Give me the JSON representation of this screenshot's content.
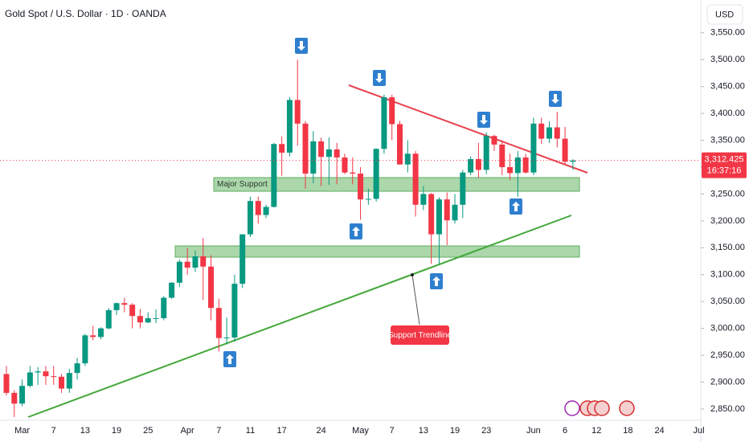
{
  "chart_data": {
    "type": "candlestick",
    "title": "Gold Spot / U.S. Dollar · 1D · OANDA",
    "currency": "USD",
    "up_color": "#089981",
    "down_color": "#f23645",
    "categories": [
      null,
      null,
      "Mar",
      null,
      null,
      null,
      "7",
      null,
      null,
      null,
      "13",
      null,
      null,
      null,
      "19",
      null,
      null,
      null,
      "25",
      null,
      null,
      null,
      null,
      "Apr",
      null,
      null,
      null,
      "7",
      null,
      null,
      null,
      "11",
      null,
      null,
      null,
      "17",
      null,
      null,
      null,
      null,
      "24",
      null,
      null,
      null,
      null,
      "May",
      null,
      null,
      null,
      "7",
      null,
      null,
      null,
      "13",
      null,
      null,
      null,
      "19",
      null,
      null,
      null,
      "23",
      null,
      null,
      null,
      null,
      null,
      "Jun",
      null,
      null,
      null,
      "6",
      null,
      null,
      null,
      "12",
      null,
      null,
      null,
      "18",
      null,
      null,
      null,
      "24",
      null,
      null,
      null,
      null,
      "Jul"
    ],
    "open": [
      2915,
      2880,
      2860,
      2893,
      2918,
      2920,
      2911,
      2910,
      2888,
      2917,
      2935,
      2987,
      2984,
      3000,
      3034,
      3047,
      3044,
      3023,
      3011,
      3019,
      3019,
      3057,
      3085,
      3124,
      3113,
      3134,
      3115,
      3038,
      2982,
      2983,
      3083,
      3175,
      3237,
      3211,
      3226,
      3343,
      3327,
      3425,
      3381,
      3288,
      3348,
      3319,
      3333,
      3318,
      3290,
      3288,
      3240,
      3241,
      3334,
      3430,
      3380,
      3305,
      3325,
      3230,
      3250,
      3175,
      3240,
      3201,
      3230,
      3290,
      3315,
      3295,
      3358,
      3342,
      3300,
      3289,
      3318,
      3290,
      3381,
      3353,
      3374,
      3353,
      3310,
      null,
      null,
      null,
      null,
      null,
      null,
      null,
      null,
      null,
      null,
      null,
      null,
      null,
      null,
      null,
      null
    ],
    "high": [
      2930,
      2885,
      2905,
      2930,
      2928,
      2930,
      2930,
      2915,
      2925,
      2945,
      2990,
      3005,
      3002,
      3038,
      3048,
      3057,
      3047,
      3036,
      3030,
      3035,
      3060,
      3086,
      3128,
      3150,
      3145,
      3168,
      3136,
      3055,
      3020,
      3100,
      3175,
      3245,
      3245,
      3230,
      3345,
      3357,
      3430,
      3500,
      3386,
      3367,
      3355,
      3355,
      3345,
      3325,
      3318,
      3300,
      3260,
      3335,
      3435,
      3435,
      3386,
      3350,
      3330,
      3265,
      3252,
      3244,
      3253,
      3250,
      3295,
      3320,
      3345,
      3365,
      3360,
      3350,
      3325,
      3330,
      3325,
      3392,
      3392,
      3385,
      3403,
      3375,
      3315,
      null,
      null,
      null,
      null,
      null,
      null,
      null,
      null,
      null,
      null,
      null,
      null,
      null,
      null,
      null,
      null
    ],
    "low": [
      2875,
      2835,
      2855,
      2890,
      2895,
      2895,
      2895,
      2880,
      2880,
      2905,
      2930,
      2978,
      2980,
      2998,
      3025,
      3030,
      3000,
      3000,
      3010,
      3010,
      3015,
      3055,
      3077,
      3100,
      3105,
      3053,
      3015,
      2957,
      2970,
      2975,
      3075,
      3170,
      3195,
      3205,
      3225,
      3284,
      3320,
      3340,
      3260,
      3270,
      3265,
      3267,
      3268,
      3287,
      3268,
      3202,
      3230,
      3236,
      3325,
      3350,
      3305,
      3290,
      3208,
      3220,
      3120,
      3120,
      3155,
      3195,
      3205,
      3285,
      3280,
      3287,
      3330,
      3285,
      3276,
      3245,
      3288,
      3285,
      3343,
      3345,
      3337,
      3306,
      3295,
      null,
      null,
      null,
      null,
      null,
      null,
      null,
      null,
      null,
      null,
      null,
      null,
      null,
      null,
      null,
      null
    ],
    "close": [
      2880,
      2860,
      2893,
      2918,
      2920,
      2911,
      2910,
      2888,
      2917,
      2935,
      2987,
      2984,
      3000,
      3034,
      3047,
      3044,
      3023,
      3011,
      3019,
      3019,
      3057,
      3085,
      3124,
      3113,
      3134,
      3115,
      3038,
      2982,
      2983,
      3083,
      3175,
      3237,
      3211,
      3226,
      3343,
      3327,
      3425,
      3381,
      3288,
      3348,
      3319,
      3333,
      3318,
      3290,
      3288,
      3240,
      3241,
      3334,
      3430,
      3380,
      3305,
      3325,
      3230,
      3250,
      3175,
      3240,
      3201,
      3230,
      3290,
      3315,
      3295,
      3358,
      3342,
      3300,
      3289,
      3318,
      3290,
      3381,
      3353,
      3374,
      3353,
      3310,
      3312.425,
      null,
      null,
      null,
      null,
      null,
      null,
      null,
      null,
      null,
      null,
      null,
      null,
      null,
      null,
      null,
      null
    ],
    "ylim": [
      2826,
      3611
    ],
    "yticks": [
      {
        "value": 2850,
        "label": "2,850.00"
      },
      {
        "value": 2900,
        "label": "2,900.00"
      },
      {
        "value": 2950,
        "label": "2,950.00"
      },
      {
        "value": 3000,
        "label": "3,000.00"
      },
      {
        "value": 3050,
        "label": "3,050.00"
      },
      {
        "value": 3100,
        "label": "3,100.00"
      },
      {
        "value": 3150,
        "label": "3,150.00"
      },
      {
        "value": 3200,
        "label": "3,200.00"
      },
      {
        "value": 3250,
        "label": "3,250.00"
      },
      {
        "value": 3300,
        "label": "3,300.00"
      },
      {
        "value": 3350,
        "label": "3,350.00"
      },
      {
        "value": 3400,
        "label": "3,400.00"
      },
      {
        "value": 3450,
        "label": "3,450.00"
      },
      {
        "value": 3500,
        "label": "3,500.00"
      },
      {
        "value": 3550,
        "label": "3,550.00"
      }
    ],
    "last_price": {
      "value": 3312.425,
      "label": "3,312.425"
    },
    "countdown": "16:37:16",
    "annotations": [
      "Major Support",
      "Support Trendline"
    ]
  }
}
